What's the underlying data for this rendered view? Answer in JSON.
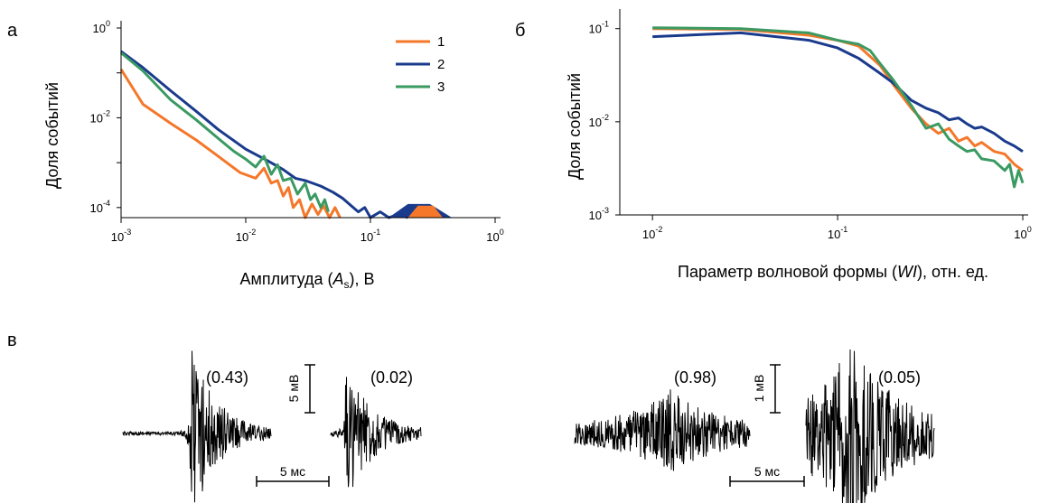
{
  "colors": {
    "s1": "#f4772a",
    "s2": "#1a3a8c",
    "s3": "#3a9a62",
    "ink": "#000000"
  },
  "chart_data": [
    {
      "panel_label": "а",
      "type": "line",
      "log_x": true,
      "log_y": true,
      "xlabel_pre": "Амплитуда (",
      "xlabel_var": "A",
      "xlabel_sub": "s",
      "xlabel_post": "), В",
      "ylabel": "Доля событий",
      "xlim": [
        0.001,
        1
      ],
      "ylim": [
        5.96e-05,
        1
      ],
      "x_ticks": [
        {
          "value": 0.001,
          "base": "10",
          "exp": "-3"
        },
        {
          "value": 0.01,
          "base": "10",
          "exp": "-2"
        },
        {
          "value": 0.1,
          "base": "10",
          "exp": "-1"
        },
        {
          "value": 1,
          "base": "10",
          "exp": "0"
        }
      ],
      "y_ticks": [
        {
          "value": 1,
          "base": "10",
          "exp": "0"
        },
        {
          "value": 0.01,
          "base": "10",
          "exp": "-2"
        },
        {
          "value": 0.0001,
          "base": "10",
          "exp": "-4"
        }
      ],
      "legend": [
        "1",
        "2",
        "3"
      ],
      "legend_position": "top-right",
      "series": [
        {
          "name": "1",
          "x": [
            0.001,
            0.0015,
            0.0025,
            0.004,
            0.006,
            0.009,
            0.012,
            0.014,
            0.016,
            0.018,
            0.02,
            0.022,
            0.024,
            0.027,
            0.03,
            0.034,
            0.038,
            0.042,
            0.047,
            0.052,
            0.057
          ],
          "y": [
            0.12,
            0.02,
            0.0075,
            0.0032,
            0.0014,
            0.0006,
            0.00045,
            0.00075,
            0.00035,
            0.0004,
            0.00018,
            0.00028,
            0.0001,
            0.00015,
            6e-05,
            0.00012,
            7e-05,
            0.00011,
            6e-05,
            0.0001,
            6e-05
          ]
        },
        {
          "name": "2",
          "x": [
            0.001,
            0.0015,
            0.0025,
            0.004,
            0.006,
            0.01,
            0.015,
            0.02,
            0.025,
            0.03,
            0.04,
            0.05,
            0.06,
            0.07,
            0.08,
            0.09,
            0.1,
            0.12,
            0.14,
            0.17,
            0.2
          ],
          "y": [
            0.3,
            0.13,
            0.04,
            0.014,
            0.0055,
            0.002,
            0.0011,
            0.0007,
            0.00045,
            0.0004,
            0.0003,
            0.00022,
            0.00016,
            0.00011,
            8e-05,
            0.0001,
            6e-05,
            8e-05,
            6e-05,
            7e-05,
            6e-05
          ]
        },
        {
          "name": "3",
          "x": [
            0.001,
            0.0015,
            0.0025,
            0.004,
            0.006,
            0.008,
            0.01,
            0.012,
            0.014,
            0.016,
            0.018,
            0.02,
            0.023,
            0.026,
            0.03,
            0.033,
            0.036,
            0.04,
            0.043,
            0.046
          ],
          "y": [
            0.28,
            0.11,
            0.025,
            0.009,
            0.0035,
            0.0018,
            0.0012,
            0.0008,
            0.0014,
            0.00055,
            0.0009,
            0.0004,
            0.00045,
            0.0002,
            0.00035,
            0.00015,
            0.0002,
            0.0001,
            0.00015,
            8e-05
          ]
        }
      ],
      "peaks": [
        {
          "series": "2",
          "x": [
            0.14,
            0.2,
            0.3,
            0.45
          ],
          "y": [
            5.96e-05,
            0.00012,
            0.00012,
            5.96e-05
          ]
        },
        {
          "series": "1",
          "x": [
            0.2,
            0.24,
            0.32,
            0.38
          ],
          "y": [
            5.96e-05,
            0.00011,
            0.00011,
            5.96e-05
          ]
        }
      ]
    },
    {
      "panel_label": "б",
      "type": "line",
      "log_x": true,
      "log_y": true,
      "xlabel_pre": "Параметр волновой формы (",
      "xlabel_var": "WI",
      "xlabel_sub": "",
      "xlabel_post": "), отн. ед.",
      "ylabel": "Доля событий",
      "xlim": [
        0.00666,
        1
      ],
      "ylim": [
        0.001,
        0.1358
      ],
      "x_ticks": [
        {
          "value": 0.01,
          "base": "10",
          "exp": "-2"
        },
        {
          "value": 0.1,
          "base": "10",
          "exp": "-1"
        },
        {
          "value": 1,
          "base": "10",
          "exp": "0"
        }
      ],
      "y_ticks": [
        {
          "value": 0.1,
          "base": "10",
          "exp": "-1"
        },
        {
          "value": 0.01,
          "base": "10",
          "exp": "-2"
        },
        {
          "value": 0.001,
          "base": "10",
          "exp": "-3"
        }
      ],
      "series": [
        {
          "name": "1",
          "x": [
            0.01,
            0.03,
            0.07,
            0.1,
            0.13,
            0.17,
            0.2,
            0.25,
            0.3,
            0.35,
            0.4,
            0.45,
            0.5,
            0.55,
            0.6,
            0.7,
            0.8,
            0.9,
            1
          ],
          "y": [
            0.1,
            0.098,
            0.085,
            0.075,
            0.065,
            0.04,
            0.025,
            0.014,
            0.0095,
            0.0075,
            0.0085,
            0.0062,
            0.0068,
            0.0055,
            0.006,
            0.0048,
            0.0045,
            0.0035,
            0.003
          ]
        },
        {
          "name": "2",
          "x": [
            0.01,
            0.03,
            0.07,
            0.1,
            0.13,
            0.17,
            0.2,
            0.25,
            0.3,
            0.35,
            0.4,
            0.45,
            0.5,
            0.55,
            0.6,
            0.7,
            0.8,
            0.9,
            1
          ],
          "y": [
            0.082,
            0.09,
            0.075,
            0.062,
            0.048,
            0.033,
            0.026,
            0.017,
            0.014,
            0.0125,
            0.0105,
            0.011,
            0.0095,
            0.0085,
            0.0088,
            0.0075,
            0.0062,
            0.0055,
            0.0048
          ]
        },
        {
          "name": "3",
          "x": [
            0.01,
            0.03,
            0.07,
            0.1,
            0.13,
            0.15,
            0.17,
            0.2,
            0.25,
            0.3,
            0.35,
            0.4,
            0.45,
            0.5,
            0.55,
            0.6,
            0.7,
            0.8,
            0.85,
            0.9,
            0.95,
            1
          ],
          "y": [
            0.102,
            0.1,
            0.09,
            0.075,
            0.068,
            0.058,
            0.042,
            0.028,
            0.015,
            0.0085,
            0.0095,
            0.0065,
            0.0055,
            0.0048,
            0.005,
            0.004,
            0.0038,
            0.003,
            0.0035,
            0.002,
            0.003,
            0.0022
          ]
        }
      ]
    }
  ],
  "panel_v": {
    "panel_label": "в",
    "traces": [
      {
        "value_label": "(0.43)",
        "amplitude": 1.0
      },
      {
        "value_label": "(0.02)",
        "amplitude": 0.75
      },
      {
        "value_label": "(0.98)",
        "amplitude": 0.45
      },
      {
        "value_label": "(0.05)",
        "amplitude": 1.0
      }
    ],
    "scalebars": [
      {
        "vertical": "5 мВ",
        "horizontal": "5 мс"
      },
      {
        "vertical": "1 мВ",
        "horizontal": "5 мс"
      }
    ]
  }
}
